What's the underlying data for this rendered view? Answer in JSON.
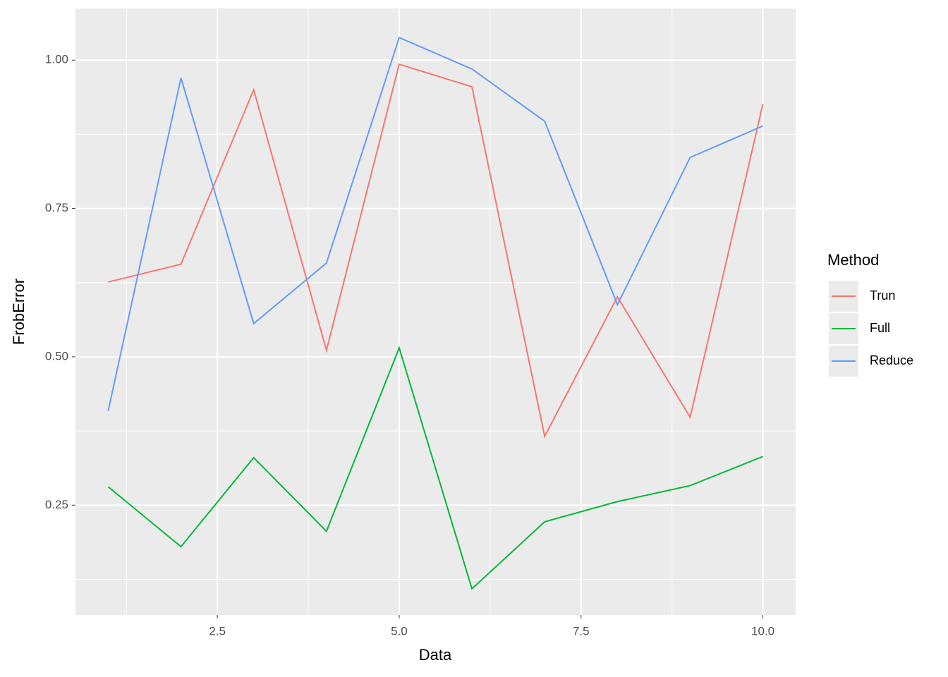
{
  "chart_data": {
    "type": "line",
    "x_label": "Data",
    "y_label": "FrobError",
    "x": [
      1,
      2,
      3,
      4,
      5,
      6,
      7,
      8,
      9,
      10
    ],
    "series": [
      {
        "name": "Trun",
        "color": "#F8766D",
        "values": [
          0.626,
          0.656,
          0.95,
          0.511,
          0.993,
          0.955,
          0.366,
          0.601,
          0.398,
          0.926
        ]
      },
      {
        "name": "Full",
        "color": "#00BA38",
        "values": [
          0.281,
          0.18,
          0.33,
          0.206,
          0.515,
          0.109,
          0.222,
          0.256,
          0.283,
          0.332
        ]
      },
      {
        "name": "Reduce",
        "color": "#619CFF",
        "values": [
          0.409,
          0.97,
          0.556,
          0.658,
          1.038,
          0.985,
          0.897,
          0.588,
          0.836,
          0.889
        ]
      }
    ],
    "legend_title": "Method",
    "legend_position": "right",
    "xlim": [
      0.55,
      10.45
    ],
    "xticks": [
      {
        "value": 2.5,
        "label": "2.5"
      },
      {
        "value": 5,
        "label": "5.0"
      },
      {
        "value": 7.5,
        "label": "7.5"
      },
      {
        "value": 10,
        "label": "10.0"
      }
    ],
    "xminor": [
      1.25,
      3.75,
      6.25,
      8.75
    ],
    "ylim": [
      0.065,
      1.087
    ],
    "yticks": [
      {
        "value": 0.25,
        "label": "0.25"
      },
      {
        "value": 0.5,
        "label": "0.50"
      },
      {
        "value": 0.75,
        "label": "0.75"
      },
      {
        "value": 1,
        "label": "1.00"
      }
    ],
    "yminor": [
      0.125,
      0.375,
      0.625,
      0.875
    ],
    "grid": true
  }
}
